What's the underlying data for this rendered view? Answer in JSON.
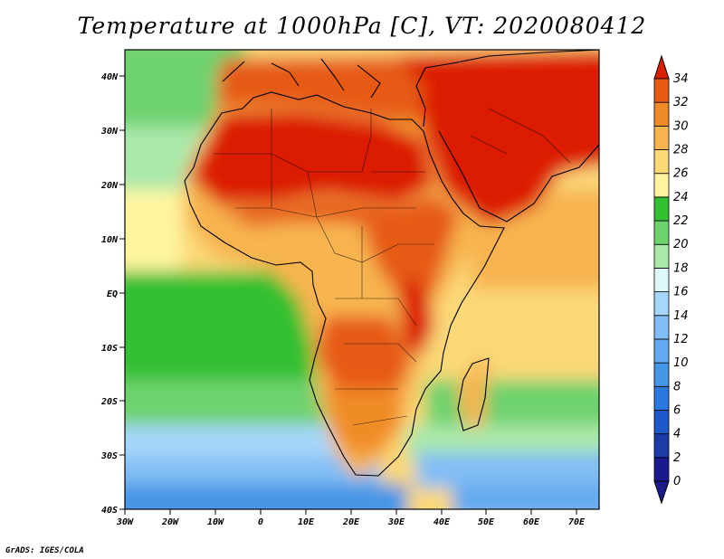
{
  "title": "Temperature at 1000hPa [C], VT: 2020080412",
  "credit": "GrADS: IGES/COLA",
  "map": {
    "lat_labels": [
      "40N",
      "30N",
      "20N",
      "10N",
      "EQ",
      "10S",
      "20S",
      "30S",
      "40S"
    ],
    "lon_labels": [
      "30W",
      "20W",
      "10W",
      "0",
      "10E",
      "20E",
      "30E",
      "40E",
      "50E",
      "60E",
      "70E"
    ]
  },
  "colorbar": {
    "labels": [
      "0",
      "2",
      "4",
      "6",
      "8",
      "10",
      "12",
      "14",
      "16",
      "18",
      "20",
      "22",
      "24",
      "26",
      "28",
      "30",
      "32",
      "34"
    ],
    "colors": [
      "#1a1a8c",
      "#1c3aa8",
      "#1f58c8",
      "#2a78dc",
      "#4696e6",
      "#64aaf0",
      "#82bef5",
      "#a6d6fa",
      "#dcf8f8",
      "#aae8aa",
      "#6ed26e",
      "#32c032",
      "#fff5a0",
      "#fbd878",
      "#f7b450",
      "#f08c28",
      "#e65a14",
      "#dc1e00"
    ]
  }
}
